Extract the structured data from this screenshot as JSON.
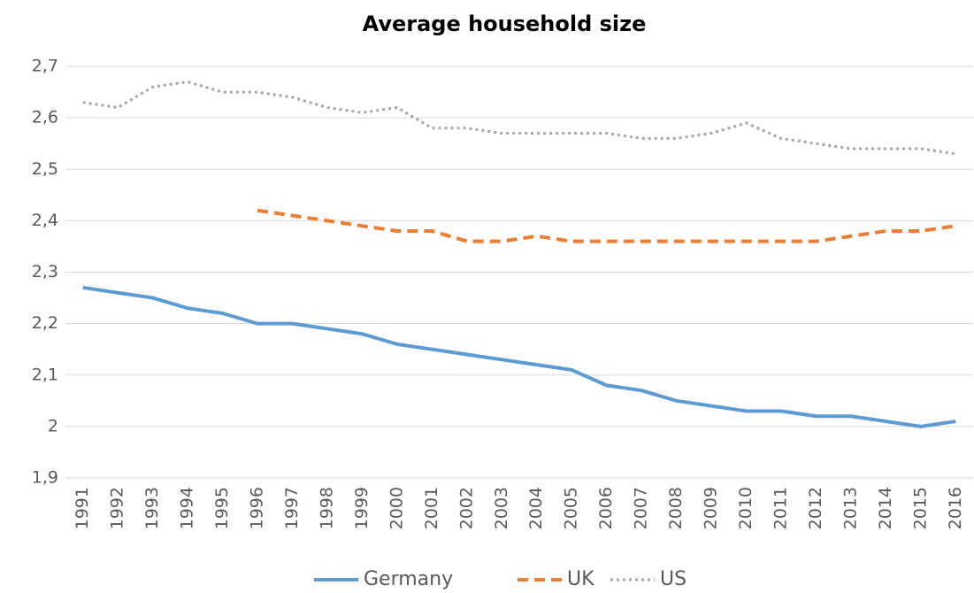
{
  "chart_data": {
    "type": "line",
    "title": "Average household size",
    "categories": [
      "1991",
      "1992",
      "1993",
      "1994",
      "1995",
      "1996",
      "1997",
      "1998",
      "1999",
      "2000",
      "2001",
      "2002",
      "2003",
      "2004",
      "2005",
      "2006",
      "2007",
      "2008",
      "2009",
      "2010",
      "2011",
      "2012",
      "2013",
      "2014",
      "2015",
      "2016"
    ],
    "series": [
      {
        "name": "Germany",
        "color": "#5b9bd5",
        "dash": "solid",
        "values": [
          2.27,
          2.26,
          2.25,
          2.23,
          2.22,
          2.2,
          2.2,
          2.19,
          2.18,
          2.16,
          2.15,
          2.14,
          2.13,
          2.12,
          2.11,
          2.08,
          2.07,
          2.05,
          2.04,
          2.03,
          2.03,
          2.02,
          2.02,
          2.01,
          2.0,
          2.01
        ]
      },
      {
        "name": "UK",
        "color": "#ed7d31",
        "dash": "dashed",
        "values": [
          null,
          null,
          null,
          null,
          null,
          2.42,
          2.41,
          2.4,
          2.39,
          2.38,
          2.38,
          2.36,
          2.36,
          2.37,
          2.36,
          2.36,
          2.36,
          2.36,
          2.36,
          2.36,
          2.36,
          2.36,
          2.37,
          2.38,
          2.38,
          2.39
        ]
      },
      {
        "name": "US",
        "color": "#a5a5a5",
        "dash": "dotted",
        "values": [
          2.63,
          2.62,
          2.66,
          2.67,
          2.65,
          2.65,
          2.64,
          2.62,
          2.61,
          2.62,
          2.58,
          2.58,
          2.57,
          2.57,
          2.57,
          2.57,
          2.56,
          2.56,
          2.57,
          2.59,
          2.56,
          2.55,
          2.54,
          2.54,
          2.54,
          2.53
        ]
      }
    ],
    "ylim": [
      1.9,
      2.7
    ],
    "yticks": [
      {
        "value": 1.9,
        "label": "1,9"
      },
      2,
      {
        "value": 2.1,
        "label": "2,1"
      },
      {
        "value": 2.2,
        "label": "2,2"
      },
      {
        "value": 2.3,
        "label": "2,3"
      },
      {
        "value": 2.4,
        "label": "2,4"
      },
      {
        "value": 2.5,
        "label": "2,5"
      },
      {
        "value": 2.6,
        "label": "2,6"
      },
      {
        "value": 2.7,
        "label": "2,7"
      }
    ],
    "grid": true,
    "legend": "bottom"
  }
}
